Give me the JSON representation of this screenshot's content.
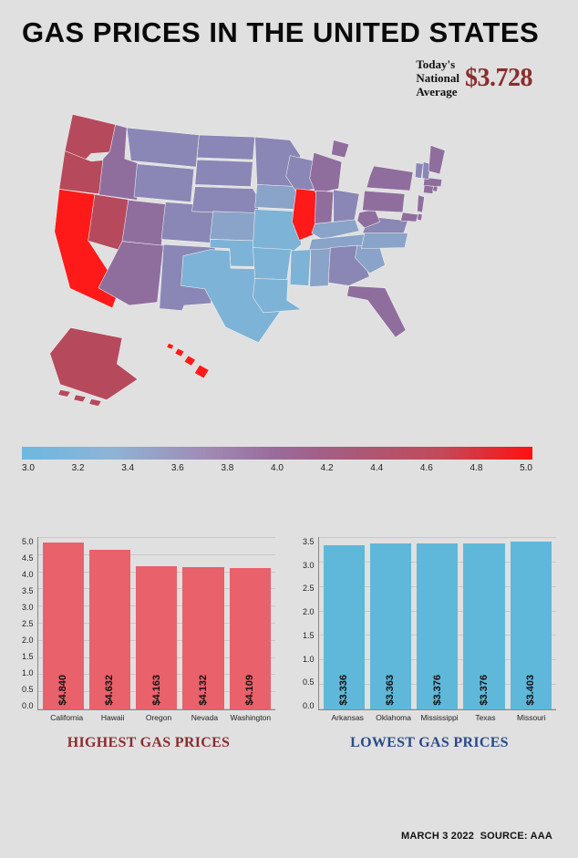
{
  "title": "GAS PRICES IN THE UNITED STATES",
  "avg": {
    "label_l1": "Today's",
    "label_l2": "National",
    "label_l3": "Average",
    "value": "$3.728"
  },
  "map": {
    "stroke": "#f0f0f0",
    "colors": {
      "very_high": "#ff1a1a",
      "high": "#b64a5c",
      "mid_high": "#a85a7a",
      "mid": "#8f6e9e",
      "mid_low": "#8a86b5",
      "low": "#8aa3c8",
      "very_low": "#7db3d6"
    },
    "states": [
      {
        "id": "WA",
        "c": "high"
      },
      {
        "id": "OR",
        "c": "high"
      },
      {
        "id": "CA",
        "c": "very_high"
      },
      {
        "id": "NV",
        "c": "high"
      },
      {
        "id": "ID",
        "c": "mid"
      },
      {
        "id": "MT",
        "c": "mid_low"
      },
      {
        "id": "WY",
        "c": "mid_low"
      },
      {
        "id": "UT",
        "c": "mid"
      },
      {
        "id": "AZ",
        "c": "mid"
      },
      {
        "id": "CO",
        "c": "mid_low"
      },
      {
        "id": "NM",
        "c": "mid_low"
      },
      {
        "id": "ND",
        "c": "mid_low"
      },
      {
        "id": "SD",
        "c": "mid_low"
      },
      {
        "id": "NE",
        "c": "mid_low"
      },
      {
        "id": "KS",
        "c": "low"
      },
      {
        "id": "OK",
        "c": "very_low"
      },
      {
        "id": "TX",
        "c": "very_low"
      },
      {
        "id": "MN",
        "c": "mid_low"
      },
      {
        "id": "IA",
        "c": "low"
      },
      {
        "id": "MO",
        "c": "very_low"
      },
      {
        "id": "AR",
        "c": "very_low"
      },
      {
        "id": "LA",
        "c": "very_low"
      },
      {
        "id": "WI",
        "c": "mid_low"
      },
      {
        "id": "IL",
        "c": "very_high"
      },
      {
        "id": "MI",
        "c": "mid"
      },
      {
        "id": "IN",
        "c": "mid"
      },
      {
        "id": "OH",
        "c": "mid_low"
      },
      {
        "id": "KY",
        "c": "low"
      },
      {
        "id": "TN",
        "c": "low"
      },
      {
        "id": "MS",
        "c": "very_low"
      },
      {
        "id": "AL",
        "c": "low"
      },
      {
        "id": "GA",
        "c": "mid_low"
      },
      {
        "id": "FL",
        "c": "mid"
      },
      {
        "id": "SC",
        "c": "low"
      },
      {
        "id": "NC",
        "c": "low"
      },
      {
        "id": "VA",
        "c": "mid_low"
      },
      {
        "id": "WV",
        "c": "mid"
      },
      {
        "id": "PA",
        "c": "mid"
      },
      {
        "id": "NY",
        "c": "mid"
      },
      {
        "id": "MD",
        "c": "mid"
      },
      {
        "id": "DE",
        "c": "mid"
      },
      {
        "id": "NJ",
        "c": "mid"
      },
      {
        "id": "CT",
        "c": "mid"
      },
      {
        "id": "RI",
        "c": "mid"
      },
      {
        "id": "MA",
        "c": "mid"
      },
      {
        "id": "VT",
        "c": "mid_low"
      },
      {
        "id": "NH",
        "c": "mid_low"
      },
      {
        "id": "ME",
        "c": "mid"
      },
      {
        "id": "AK",
        "c": "high"
      },
      {
        "id": "HI",
        "c": "very_high"
      }
    ]
  },
  "gradient": {
    "ticks": [
      "3.0",
      "3.2",
      "3.4",
      "3.6",
      "3.8",
      "4.0",
      "4.2",
      "4.4",
      "4.6",
      "4.8",
      "5.0"
    ]
  },
  "high_chart": {
    "title": "HIGHEST GAS PRICES",
    "color": "#e8616b",
    "ymax": 5.0,
    "ystep": 0.5,
    "bars": [
      {
        "label": "California",
        "value": 4.84,
        "text": "$4.840"
      },
      {
        "label": "Hawaii",
        "value": 4.632,
        "text": "$4.632"
      },
      {
        "label": "Oregon",
        "value": 4.163,
        "text": "$4.163"
      },
      {
        "label": "Nevada",
        "value": 4.132,
        "text": "$4.132"
      },
      {
        "label": "Washington",
        "value": 4.109,
        "text": "$4.109"
      }
    ]
  },
  "low_chart": {
    "title": "LOWEST GAS PRICES",
    "color": "#5fb8d9",
    "ymax": 3.5,
    "ystep": 0.5,
    "bars": [
      {
        "label": "Arkansas",
        "value": 3.336,
        "text": "$3.336"
      },
      {
        "label": "Oklahoma",
        "value": 3.363,
        "text": "$3.363"
      },
      {
        "label": "Mississippi",
        "value": 3.376,
        "text": "$3.376"
      },
      {
        "label": "Texas",
        "value": 3.376,
        "text": "$3.376"
      },
      {
        "label": "Missouri",
        "value": 3.403,
        "text": "$3.403"
      }
    ]
  },
  "footer": {
    "date": "MARCH 3 2022",
    "source": "SOURCE: AAA"
  }
}
